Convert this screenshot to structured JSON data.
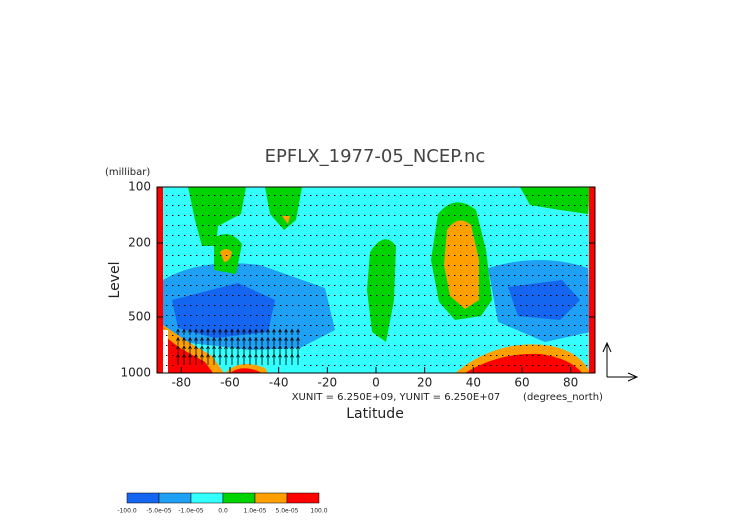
{
  "chart_data": {
    "type": "contour",
    "title": "EPFLX_1977-05_NCEP.nc",
    "y_unit": "(millibar)",
    "y_label": "Level",
    "x_label": "Latitude",
    "x_unit": "(degrees_north)",
    "vector_scale": "XUNIT = 6.250E+09, YUNIT = 6.250E+07",
    "xlim": [
      -90,
      90
    ],
    "xticks": [
      -80,
      -60,
      -40,
      -20,
      0,
      20,
      40,
      60,
      80
    ],
    "ylim": [
      100,
      1000
    ],
    "yticks": [
      100,
      200,
      500,
      1000
    ],
    "y_log": true,
    "y_inverted": true,
    "colorbar": {
      "colors": [
        "#1466f0",
        "#1ea0f5",
        "#33ffff",
        "#00d400",
        "#ffa000",
        "#ff0000"
      ],
      "levels": [
        {
          "value": -100,
          "label": "-100.0"
        },
        {
          "value": -5e-05,
          "label": "-5.0e-05"
        },
        {
          "value": -1e-05,
          "label": "-1.0e-05"
        },
        {
          "value": 0,
          "label": "0.0"
        },
        {
          "value": 1e-05,
          "label": "1.0e-05"
        },
        {
          "value": 5e-05,
          "label": "5.0e-05"
        },
        {
          "value": 100,
          "label": "100.0"
        }
      ]
    }
  }
}
